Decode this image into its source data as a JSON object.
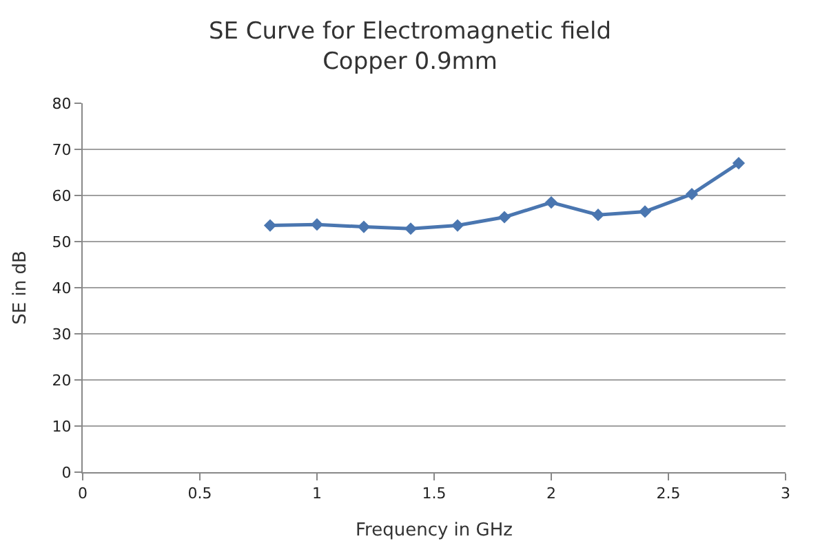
{
  "chart_data": {
    "type": "line",
    "title": "SE Curve for Electromagnetic field\nCopper 0.9mm",
    "xlabel": "Frequency in GHz",
    "ylabel": "SE in dB",
    "x": [
      0.8,
      1.0,
      1.2,
      1.4,
      1.6,
      1.8,
      2.0,
      2.2,
      2.4,
      2.6,
      2.8
    ],
    "series": [
      {
        "color": "#4a76b0",
        "values": [
          53.5,
          53.7,
          53.2,
          52.8,
          53.5,
          55.3,
          58.5,
          55.8,
          56.5,
          60.3,
          67
        ]
      }
    ],
    "xlim": [
      0,
      3
    ],
    "xticks": [
      0,
      0.5,
      1,
      1.5,
      2,
      2.5,
      3
    ],
    "ylim": [
      0,
      80
    ],
    "yticks": [
      0,
      10,
      20,
      30,
      40,
      50,
      60,
      70,
      80
    ],
    "grid": "y",
    "marker": "diamond",
    "line_style": "solid",
    "legend": false
  }
}
